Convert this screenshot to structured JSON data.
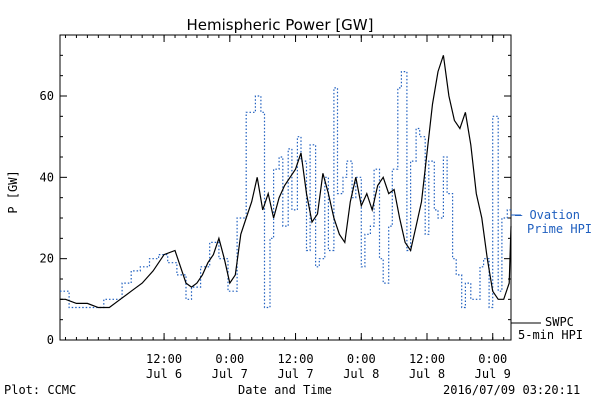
{
  "chart_data": {
    "type": "line",
    "title": "Hemispheric Power [GW]",
    "ylabel": "P [GW]",
    "xlabel": "Date and Time",
    "ylim": [
      0,
      75
    ],
    "xlim": [
      "2016-07-05 17:00",
      "2016-07-09 03:20"
    ],
    "grid": false,
    "y_ticks": [
      0,
      20,
      40,
      60
    ],
    "x_ticks": [
      {
        "time": "2016-07-06 12:00",
        "line1": "12:00",
        "line2": "Jul 6"
      },
      {
        "time": "2016-07-07 00:00",
        "line1": "0:00",
        "line2": "Jul 7"
      },
      {
        "time": "2016-07-07 12:00",
        "line1": "12:00",
        "line2": "Jul 7"
      },
      {
        "time": "2016-07-08 00:00",
        "line1": "0:00",
        "line2": "Jul 8"
      },
      {
        "time": "2016-07-08 12:00",
        "line1": "12:00",
        "line2": "Jul 8"
      },
      {
        "time": "2016-07-09 00:00",
        "line1": "0:00",
        "line2": "Jul 9"
      }
    ],
    "series": [
      {
        "name": "Ovation Prime HPI",
        "legend_label": "— Ovation\nPrime HPI",
        "color": "#1f5fbf",
        "style": "dotted",
        "x": [
          "2016-07-05 17:00",
          "2016-07-05 18:40",
          "2016-07-06 01:00",
          "2016-07-06 04:20",
          "2016-07-06 06:00",
          "2016-07-06 07:40",
          "2016-07-06 09:20",
          "2016-07-06 11:00",
          "2016-07-06 12:40",
          "2016-07-06 14:20",
          "2016-07-06 16:00",
          "2016-07-06 17:00",
          "2016-07-06 18:40",
          "2016-07-06 20:20",
          "2016-07-06 22:00",
          "2016-07-06 23:40",
          "2016-07-07 01:20",
          "2016-07-07 03:00",
          "2016-07-07 04:40",
          "2016-07-07 05:40",
          "2016-07-07 06:20",
          "2016-07-07 07:20",
          "2016-07-07 08:00",
          "2016-07-07 09:00",
          "2016-07-07 09:40",
          "2016-07-07 10:40",
          "2016-07-07 11:20",
          "2016-07-07 12:20",
          "2016-07-07 13:00",
          "2016-07-07 14:00",
          "2016-07-07 14:40",
          "2016-07-07 15:40",
          "2016-07-07 16:20",
          "2016-07-07 17:20",
          "2016-07-07 18:00",
          "2016-07-07 19:00",
          "2016-07-07 19:40",
          "2016-07-07 20:40",
          "2016-07-07 21:20",
          "2016-07-07 22:20",
          "2016-07-07 23:00",
          "2016-07-08 00:00",
          "2016-07-08 00:40",
          "2016-07-08 01:40",
          "2016-07-08 02:20",
          "2016-07-08 03:20",
          "2016-07-08 04:00",
          "2016-07-08 05:00",
          "2016-07-08 05:40",
          "2016-07-08 06:40",
          "2016-07-08 07:20",
          "2016-07-08 08:20",
          "2016-07-08 09:00",
          "2016-07-08 10:00",
          "2016-07-08 10:40",
          "2016-07-08 11:40",
          "2016-07-08 12:20",
          "2016-07-08 13:20",
          "2016-07-08 14:00",
          "2016-07-08 15:00",
          "2016-07-08 15:40",
          "2016-07-08 16:40",
          "2016-07-08 17:20",
          "2016-07-08 18:20",
          "2016-07-08 19:00",
          "2016-07-08 20:00",
          "2016-07-08 20:40",
          "2016-07-08 21:40",
          "2016-07-08 22:20",
          "2016-07-08 23:20",
          "2016-07-09 00:00",
          "2016-07-09 01:00",
          "2016-07-09 01:40",
          "2016-07-09 02:40",
          "2016-07-09 03:20"
        ],
        "y": [
          12,
          8,
          10,
          14,
          17,
          18,
          20,
          21,
          19,
          16,
          10,
          13,
          18,
          24,
          20,
          12,
          30,
          56,
          60,
          56,
          8,
          25,
          42,
          45,
          28,
          47,
          32,
          50,
          44,
          22,
          48,
          18,
          20,
          40,
          22,
          62,
          36,
          40,
          44,
          35,
          40,
          18,
          26,
          28,
          42,
          20,
          14,
          28,
          42,
          62,
          66,
          22,
          44,
          52,
          50,
          26,
          44,
          32,
          30,
          45,
          36,
          20,
          16,
          8,
          14,
          10,
          10,
          18,
          20,
          8,
          55,
          12,
          30,
          32,
          32
        ]
      },
      {
        "name": "SWPC 5-min HPI",
        "legend_label": "SWPC\n5-min HPI",
        "color": "#000000",
        "style": "solid",
        "x": [
          "2016-07-05 17:00",
          "2016-07-05 18:00",
          "2016-07-05 20:00",
          "2016-07-05 22:00",
          "2016-07-06 00:00",
          "2016-07-06 02:00",
          "2016-07-06 04:00",
          "2016-07-06 06:00",
          "2016-07-06 08:00",
          "2016-07-06 10:00",
          "2016-07-06 12:00",
          "2016-07-06 14:00",
          "2016-07-06 15:00",
          "2016-07-06 16:00",
          "2016-07-06 17:00",
          "2016-07-06 18:00",
          "2016-07-06 19:00",
          "2016-07-06 20:00",
          "2016-07-06 21:00",
          "2016-07-06 22:00",
          "2016-07-06 23:00",
          "2016-07-07 00:00",
          "2016-07-07 01:00",
          "2016-07-07 02:00",
          "2016-07-07 03:00",
          "2016-07-07 04:00",
          "2016-07-07 05:00",
          "2016-07-07 06:00",
          "2016-07-07 07:00",
          "2016-07-07 08:00",
          "2016-07-07 09:00",
          "2016-07-07 10:00",
          "2016-07-07 11:00",
          "2016-07-07 12:00",
          "2016-07-07 13:00",
          "2016-07-07 14:00",
          "2016-07-07 15:00",
          "2016-07-07 16:00",
          "2016-07-07 17:00",
          "2016-07-07 18:00",
          "2016-07-07 19:00",
          "2016-07-07 20:00",
          "2016-07-07 21:00",
          "2016-07-07 22:00",
          "2016-07-07 23:00",
          "2016-07-08 00:00",
          "2016-07-08 01:00",
          "2016-07-08 02:00",
          "2016-07-08 03:00",
          "2016-07-08 04:00",
          "2016-07-08 05:00",
          "2016-07-08 06:00",
          "2016-07-08 07:00",
          "2016-07-08 08:00",
          "2016-07-08 09:00",
          "2016-07-08 10:00",
          "2016-07-08 11:00",
          "2016-07-08 12:00",
          "2016-07-08 13:00",
          "2016-07-08 14:00",
          "2016-07-08 15:00",
          "2016-07-08 16:00",
          "2016-07-08 17:00",
          "2016-07-08 18:00",
          "2016-07-08 19:00",
          "2016-07-08 20:00",
          "2016-07-08 21:00",
          "2016-07-08 22:00",
          "2016-07-08 23:00",
          "2016-07-09 00:00",
          "2016-07-09 01:00",
          "2016-07-09 02:00",
          "2016-07-09 03:00",
          "2016-07-09 03:20"
        ],
        "y": [
          10,
          10,
          9,
          9,
          8,
          8,
          10,
          12,
          14,
          17,
          21,
          22,
          18,
          14,
          13,
          14,
          16,
          19,
          21,
          25,
          20,
          14,
          16,
          26,
          30,
          34,
          40,
          32,
          36,
          30,
          35,
          38,
          40,
          42,
          46,
          36,
          29,
          31,
          41,
          36,
          30,
          26,
          24,
          34,
          40,
          33,
          36,
          32,
          38,
          40,
          36,
          37,
          30,
          24,
          22,
          28,
          34,
          46,
          58,
          66,
          70,
          60,
          54,
          52,
          56,
          48,
          36,
          30,
          20,
          12,
          10,
          10,
          14,
          28
        ]
      }
    ],
    "annotations": {
      "footer_left": "Plot: CCMC",
      "footer_center": "Date and Time",
      "footer_right": "2016/07/09 03:20:11"
    }
  }
}
